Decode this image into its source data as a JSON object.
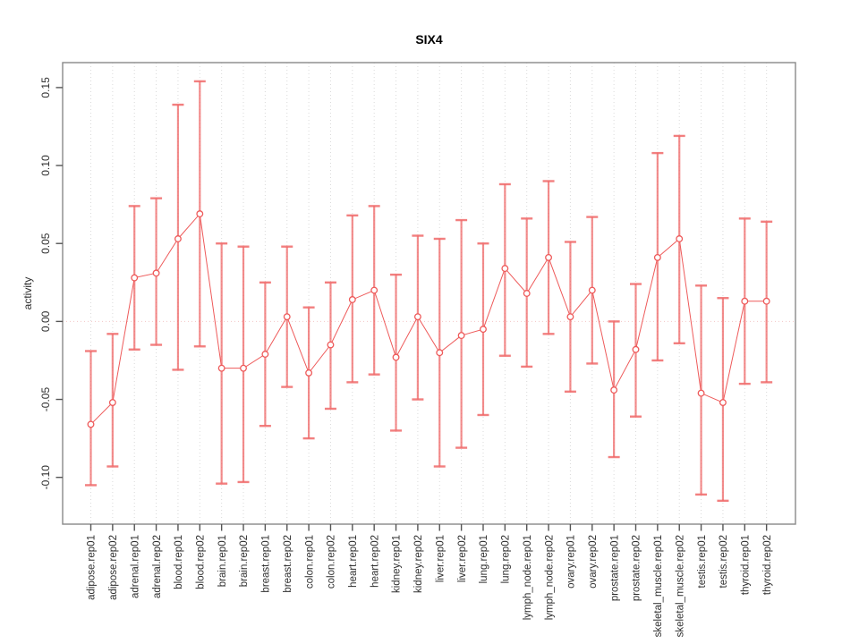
{
  "figure": {
    "title": "SIX4"
  },
  "chart_data": {
    "type": "line",
    "title": "SIX4",
    "subtitle": "",
    "xlabel": "",
    "ylabel": "activity",
    "legend_position": "none",
    "grid": "vertical-dotted",
    "zero_reference_line": true,
    "marker": "open-circle",
    "error_bars": true,
    "ylim": [
      -0.13,
      0.166
    ],
    "yticks": {
      "values": [
        -0.1,
        -0.05,
        0.0,
        0.05,
        0.1,
        0.15
      ],
      "labels": [
        "-0.10",
        "-0.05",
        "0.00",
        "0.05",
        "0.10",
        "0.15"
      ]
    },
    "categories": [
      "adipose.rep01",
      "adipose.rep02",
      "adrenal.rep01",
      "adrenal.rep02",
      "blood.rep01",
      "blood.rep02",
      "brain.rep01",
      "brain.rep02",
      "breast.rep01",
      "breast.rep02",
      "colon.rep01",
      "colon.rep02",
      "heart.rep01",
      "heart.rep02",
      "kidney.rep01",
      "kidney.rep02",
      "liver.rep01",
      "liver.rep02",
      "lung.rep01",
      "lung.rep02",
      "lymph_node.rep01",
      "lymph_node.rep02",
      "ovary.rep01",
      "ovary.rep02",
      "prostate.rep01",
      "prostate.rep02",
      "skeletal_muscle.rep01",
      "skeletal_muscle.rep02",
      "testis.rep01",
      "testis.rep02",
      "thyroid.rep01",
      "thyroid.rep02"
    ],
    "series": [
      {
        "name": "activity",
        "values": [
          -0.066,
          -0.052,
          0.028,
          0.031,
          0.053,
          0.069,
          -0.03,
          -0.03,
          -0.021,
          0.003,
          -0.033,
          -0.015,
          0.014,
          0.02,
          -0.023,
          0.003,
          -0.02,
          -0.009,
          -0.005,
          0.034,
          0.018,
          0.041,
          0.003,
          0.02,
          -0.044,
          -0.018,
          0.041,
          0.053,
          -0.046,
          -0.052,
          0.013,
          0.013
        ],
        "error_high": [
          -0.019,
          -0.008,
          0.074,
          0.079,
          0.139,
          0.154,
          0.05,
          0.048,
          0.025,
          0.048,
          0.009,
          0.025,
          0.068,
          0.074,
          0.03,
          0.055,
          0.053,
          0.065,
          0.05,
          0.088,
          0.066,
          0.09,
          0.051,
          0.067,
          0.0,
          0.024,
          0.108,
          0.119,
          0.023,
          0.015,
          0.066,
          0.064
        ],
        "error_low": [
          -0.105,
          -0.093,
          -0.018,
          -0.015,
          -0.031,
          -0.016,
          -0.104,
          -0.103,
          -0.067,
          -0.042,
          -0.075,
          -0.056,
          -0.039,
          -0.034,
          -0.07,
          -0.05,
          -0.093,
          -0.081,
          -0.06,
          -0.022,
          -0.029,
          -0.008,
          -0.045,
          -0.027,
          -0.087,
          -0.061,
          -0.025,
          -0.014,
          -0.111,
          -0.115,
          -0.04,
          -0.039
        ]
      }
    ],
    "colors": {
      "series_line": "#ee5a5a",
      "marker_stroke": "#ee5a5a",
      "marker_fill": "#ffffff",
      "error_bar": "rgba(238,95,95,0.72)",
      "error_bar_cap": "rgba(240,105,105,0.85)",
      "zero_line": "#f2c6c6",
      "gridline": "#dadada",
      "frame": "#888888",
      "tick": "#555555",
      "tick_label": "#2e2e2e",
      "title_text": "#000000"
    }
  }
}
